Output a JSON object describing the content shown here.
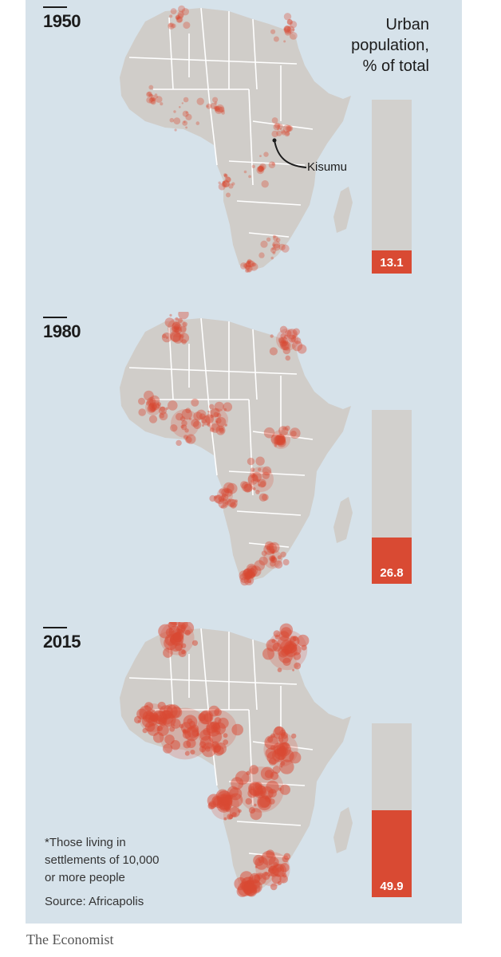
{
  "chart_data": {
    "type": "bar",
    "title": "Urban population, % of total",
    "categories": [
      "1950",
      "1980",
      "2015"
    ],
    "values": [
      13.1,
      26.8,
      49.9
    ],
    "value_labels": [
      "13.1",
      "26.8",
      "49.9"
    ],
    "ylim": [
      0,
      100
    ],
    "annotations": [
      "Kisumu"
    ],
    "colors": {
      "fill": "#d94a33",
      "track": "#d2d0cd",
      "background": "#d6e2ea",
      "map": "#d0cdc9"
    }
  },
  "title_lines": [
    "Urban",
    "population,",
    "% of total"
  ],
  "footnote_lines": [
    "*Those living in",
    "settlements of 10,000",
    "or more people"
  ],
  "source": "Source: Africapolis",
  "brand": "The Economist"
}
